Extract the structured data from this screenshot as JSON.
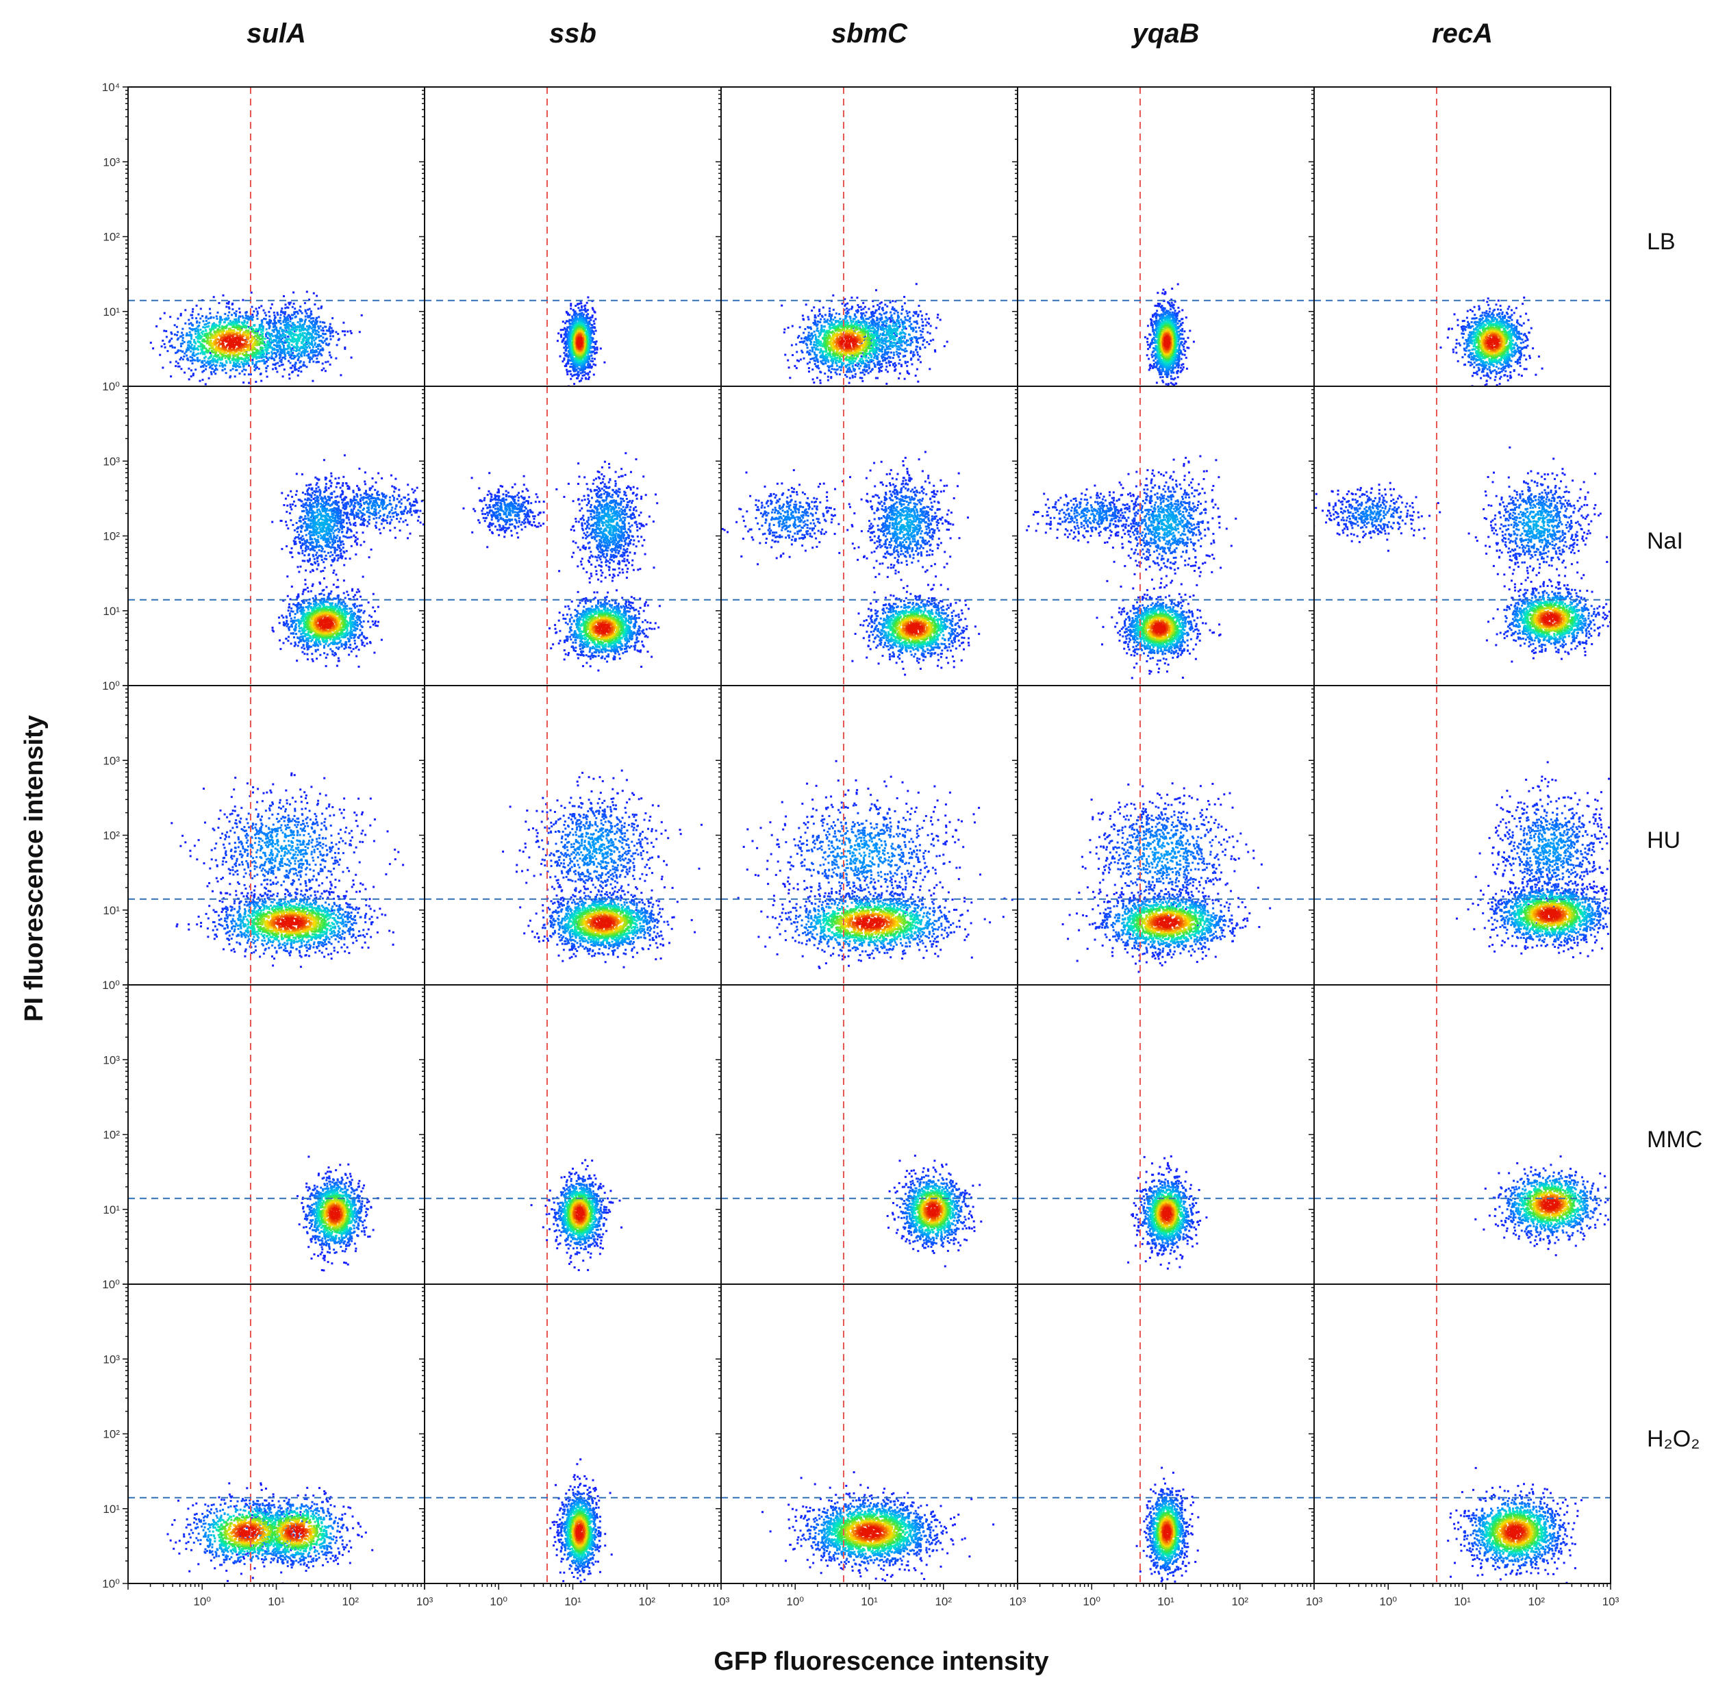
{
  "figure": {
    "y_axis_title": "PI fluorescence intensity",
    "x_axis_title": "GFP fluorescence intensity"
  },
  "colors": {
    "threshold_x_line": "#e8544f",
    "threshold_y_line": "#2f6fb8",
    "density_low": "#1a1aff",
    "density_mid": "#00e5d0",
    "density_high": "#ffe000",
    "density_peak": "#e81000"
  },
  "chart_data": {
    "type": "scatter",
    "subtype": "flow-cytometry density plot grid",
    "columns": [
      "sulA",
      "ssb",
      "sbmC",
      "yqaB",
      "recA"
    ],
    "rows": [
      "LB",
      "NaI",
      "HU",
      "MMC",
      "H2O2"
    ],
    "row_label_display": [
      "LB",
      "NaI",
      "HU",
      "MMC",
      "H₂O₂"
    ],
    "x_scale": "log",
    "y_scale": "log",
    "xlim": [
      0.1,
      1000
    ],
    "ylim": [
      1,
      10000
    ],
    "x_ticks": [
      1,
      10,
      100,
      1000
    ],
    "x_tick_labels": [
      "10⁰",
      "10¹",
      "10²",
      "10³"
    ],
    "y_ticks": [
      1,
      10,
      100,
      1000,
      10000
    ],
    "y_tick_labels": [
      "10⁰",
      "10¹",
      "10²",
      "10³",
      "10⁴"
    ],
    "xlabel": "GFP fluorescence intensity",
    "ylabel": "PI fluorescence intensity",
    "gfp_threshold_by_column": [
      4.5,
      4.5,
      4.5,
      4.5,
      4.5
    ],
    "pi_threshold": 14,
    "populations": [
      [
        [
          {
            "cx": 2.5,
            "cy": 4,
            "sx": 0.38,
            "sy": 0.2,
            "n": 1500,
            "w": 1.0
          },
          {
            "cx": 18,
            "cy": 4.5,
            "sx": 0.28,
            "sy": 0.22,
            "n": 700,
            "w": 0.45
          }
        ],
        [
          {
            "cx": 200,
            "cy": 250,
            "sx": 0.35,
            "sy": 0.15,
            "n": 400,
            "w": 0.25
          },
          {
            "cx": 40,
            "cy": 150,
            "sx": 0.22,
            "sy": 0.3,
            "n": 900,
            "w": 0.35
          },
          {
            "cx": 45,
            "cy": 7,
            "sx": 0.25,
            "sy": 0.18,
            "n": 1500,
            "w": 1.0
          }
        ],
        [
          {
            "cx": 15,
            "cy": 7,
            "sx": 0.45,
            "sy": 0.18,
            "n": 1800,
            "w": 1.0
          },
          {
            "cx": 12,
            "cy": 70,
            "sx": 0.5,
            "sy": 0.35,
            "n": 900,
            "w": 0.3
          }
        ],
        [
          {
            "cx": 60,
            "cy": 9,
            "sx": 0.18,
            "sy": 0.22,
            "n": 1400,
            "w": 1.0
          }
        ],
        [
          {
            "cx": 4,
            "cy": 5,
            "sx": 0.35,
            "sy": 0.2,
            "n": 1200,
            "w": 1.0
          },
          {
            "cx": 18,
            "cy": 5,
            "sx": 0.3,
            "sy": 0.2,
            "n": 1200,
            "w": 1.0
          }
        ]
      ],
      [
        [
          {
            "cx": 12,
            "cy": 4,
            "sx": 0.09,
            "sy": 0.2,
            "n": 1400,
            "w": 1.0
          }
        ],
        [
          {
            "cx": 1.3,
            "cy": 220,
            "sx": 0.2,
            "sy": 0.15,
            "n": 400,
            "w": 0.25
          },
          {
            "cx": 30,
            "cy": 150,
            "sx": 0.2,
            "sy": 0.3,
            "n": 900,
            "w": 0.35
          },
          {
            "cx": 25,
            "cy": 6,
            "sx": 0.24,
            "sy": 0.18,
            "n": 1500,
            "w": 1.0
          }
        ],
        [
          {
            "cx": 25,
            "cy": 7,
            "sx": 0.35,
            "sy": 0.18,
            "n": 1800,
            "w": 1.0
          },
          {
            "cx": 20,
            "cy": 70,
            "sx": 0.4,
            "sy": 0.35,
            "n": 900,
            "w": 0.3
          }
        ],
        [
          {
            "cx": 12,
            "cy": 9,
            "sx": 0.15,
            "sy": 0.22,
            "n": 1400,
            "w": 1.0
          }
        ],
        [
          {
            "cx": 12,
            "cy": 5,
            "sx": 0.12,
            "sy": 0.25,
            "n": 1400,
            "w": 1.0
          }
        ]
      ],
      [
        [
          {
            "cx": 5,
            "cy": 4,
            "sx": 0.3,
            "sy": 0.2,
            "n": 1500,
            "w": 1.0
          },
          {
            "cx": 20,
            "cy": 5,
            "sx": 0.25,
            "sy": 0.22,
            "n": 500,
            "w": 0.4
          }
        ],
        [
          {
            "cx": 0.8,
            "cy": 180,
            "sx": 0.3,
            "sy": 0.2,
            "n": 400,
            "w": 0.25
          },
          {
            "cx": 30,
            "cy": 150,
            "sx": 0.25,
            "sy": 0.3,
            "n": 900,
            "w": 0.35
          },
          {
            "cx": 40,
            "cy": 6,
            "sx": 0.28,
            "sy": 0.18,
            "n": 1500,
            "w": 1.0
          }
        ],
        [
          {
            "cx": 10,
            "cy": 7,
            "sx": 0.5,
            "sy": 0.18,
            "n": 1800,
            "w": 1.0
          },
          {
            "cx": 8,
            "cy": 60,
            "sx": 0.55,
            "sy": 0.35,
            "n": 900,
            "w": 0.3
          }
        ],
        [
          {
            "cx": 70,
            "cy": 10,
            "sx": 0.2,
            "sy": 0.22,
            "n": 1400,
            "w": 1.0
          }
        ],
        [
          {
            "cx": 10,
            "cy": 5,
            "sx": 0.4,
            "sy": 0.2,
            "n": 2400,
            "w": 1.0
          }
        ]
      ],
      [
        [
          {
            "cx": 10,
            "cy": 4,
            "sx": 0.1,
            "sy": 0.22,
            "n": 1400,
            "w": 1.0
          }
        ],
        [
          {
            "cx": 1.0,
            "cy": 200,
            "sx": 0.35,
            "sy": 0.15,
            "n": 400,
            "w": 0.25
          },
          {
            "cx": 10,
            "cy": 150,
            "sx": 0.3,
            "sy": 0.3,
            "n": 900,
            "w": 0.35
          },
          {
            "cx": 8,
            "cy": 6,
            "sx": 0.22,
            "sy": 0.18,
            "n": 1500,
            "w": 1.0
          }
        ],
        [
          {
            "cx": 10,
            "cy": 7,
            "sx": 0.4,
            "sy": 0.18,
            "n": 1800,
            "w": 1.0
          },
          {
            "cx": 9,
            "cy": 60,
            "sx": 0.45,
            "sy": 0.35,
            "n": 900,
            "w": 0.3
          }
        ],
        [
          {
            "cx": 10,
            "cy": 9,
            "sx": 0.16,
            "sy": 0.22,
            "n": 1400,
            "w": 1.0
          }
        ],
        [
          {
            "cx": 10,
            "cy": 5,
            "sx": 0.12,
            "sy": 0.25,
            "n": 1400,
            "w": 1.0
          }
        ]
      ],
      [
        [
          {
            "cx": 25,
            "cy": 4,
            "sx": 0.2,
            "sy": 0.2,
            "n": 1400,
            "w": 1.0
          }
        ],
        [
          {
            "cx": 0.6,
            "cy": 200,
            "sx": 0.3,
            "sy": 0.15,
            "n": 400,
            "w": 0.25
          },
          {
            "cx": 100,
            "cy": 150,
            "sx": 0.3,
            "sy": 0.3,
            "n": 900,
            "w": 0.35
          },
          {
            "cx": 150,
            "cy": 8,
            "sx": 0.28,
            "sy": 0.18,
            "n": 1500,
            "w": 1.0
          }
        ],
        [
          {
            "cx": 150,
            "cy": 9,
            "sx": 0.35,
            "sy": 0.18,
            "n": 1800,
            "w": 1.0
          },
          {
            "cx": 150,
            "cy": 70,
            "sx": 0.35,
            "sy": 0.35,
            "n": 900,
            "w": 0.3
          }
        ],
        [
          {
            "cx": 150,
            "cy": 12,
            "sx": 0.3,
            "sy": 0.2,
            "n": 1400,
            "w": 1.0
          }
        ],
        [
          {
            "cx": 50,
            "cy": 5,
            "sx": 0.3,
            "sy": 0.22,
            "n": 1800,
            "w": 1.0
          }
        ]
      ]
    ]
  }
}
